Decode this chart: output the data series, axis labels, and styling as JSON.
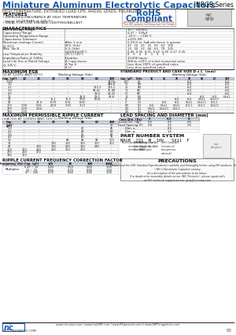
{
  "title": "Miniature Aluminum Electrolytic Capacitors",
  "series": "NRGB Series",
  "subtitle": "HIGH TEMPERATURE, EXTENDED LOAD LIFE, RADIAL LEADS, POLARIZED",
  "features_title": "FEATURES",
  "features": [
    "IMPROVED ENDURANCE AT HIGH TEMPERATURE\n  (up to 10,000HRS @ 105°C)",
    "IDEAL FOR LOW VOLTAGE LIGHTING/BALLAST"
  ],
  "rohs_line1": "RoHS",
  "rohs_line2": "Compliant",
  "rohs_sub": "includes all homogeneous materials",
  "rohs_sub2": "*See NIC website (niccomp.com) for Details",
  "char_title": "CHARACTERISTICS",
  "char_col0": [
    "Rated Voltage Range",
    "Capacitance Range",
    "Operating Temperature Range",
    "Capacitance Tolerance",
    "Maximum Leakage Current\n@ 20°C",
    "",
    "Max. Tan δ",
    "",
    "Low Temperature Stability\nImpedance Ratio @ 120Hz",
    "",
    "Load Life Test at Rated Voltage\n@ 105°C",
    "",
    ""
  ],
  "char_col1": [
    "",
    "",
    "",
    "",
    "After 2 min.",
    "W.V. (Vdc)",
    "S.V. (Vdc)",
    "@120Hz@20°C",
    "-25°C/+20°C",
    "Duration",
    "Δ Capacitance",
    "Δ Tan δ",
    "Δ LC"
  ],
  "char_col2": [
    "10 ~ 100VDC",
    "0.47 ~ 330μF",
    "-25°C ~ +105°C",
    "±20% (M)",
    "0.01CV or 3μA whichever is greater",
    "10   16   25   35   50   63   100",
    "13   20   32   44   63   79   125",
    "0.45  0.35  0.25  0.22  0.18  0.17  0.15",
    "8    6    4    4    3    3    3",
    "10,000 hours",
    "Within ±20% of initial measured value",
    "Less than 200% of specified value",
    "Less than specified value"
  ],
  "esr_title": "MAXIMUM ESR",
  "esr_sub": "(Ω AT 120Hz AND 20°C)",
  "esr_wv_label": "Working Voltage (Vdc)",
  "esr_headers": [
    "Cap. (μF)",
    "10",
    "16",
    "25",
    "35",
    "50",
    "63",
    "100"
  ],
  "esr_rows": [
    [
      "0.47",
      "-",
      "-",
      "-",
      "-",
      "-",
      "-",
      "1470s"
    ],
    [
      "1.0",
      "-",
      "-",
      "-",
      "-",
      "-",
      "-",
      "446.8"
    ],
    [
      "2.2",
      "-",
      "-",
      "-",
      "-",
      "-",
      "163.3",
      "115.1"
    ],
    [
      "3.3",
      "-",
      "-",
      "-",
      "-",
      "-",
      "90.41",
      "75.98"
    ],
    [
      "4.7",
      "-",
      "-",
      "-",
      "-",
      "-",
      "39.0",
      "26.25"
    ],
    [
      "10",
      "-",
      "-",
      "-",
      "-",
      "14.0",
      "29.2",
      "24.8"
    ],
    [
      "22",
      "-",
      "-",
      "15.1",
      "11.5",
      "9.50",
      "8.04",
      "-"
    ],
    [
      "47",
      "-",
      "12.4",
      "6.78",
      "6.31",
      "6.00",
      "-",
      "-"
    ],
    [
      "100",
      "7.48",
      "5.81",
      "4.59",
      "3.93",
      "3.13",
      "-",
      "-"
    ],
    [
      "220",
      "3.29",
      "2.64",
      "-",
      "-",
      "-",
      "-",
      "-"
    ],
    [
      "330",
      "2.26",
      "-",
      "-",
      "-",
      "-",
      "-",
      "-"
    ]
  ],
  "std_title": "STANDARD PRODUCT AND CASE SIZE D x L  (mm)",
  "std_wv_label": "Working Voltage (Vdc)",
  "std_headers": [
    "Cap. (μF)",
    "Code",
    "10",
    "16",
    "25",
    "35",
    "50",
    "63",
    "100"
  ],
  "std_rows": [
    [
      "0.47",
      "0.4",
      "-",
      "-",
      "-",
      "5x11",
      "-",
      "-",
      "5x11"
    ],
    [
      "1.0",
      "1R0",
      "-",
      "-",
      "-",
      "5x11",
      "-",
      "-",
      "5x11"
    ],
    [
      "2.2",
      "2R2",
      "-",
      "-",
      "-",
      "5x11",
      "-",
      "-",
      "5x11"
    ],
    [
      "3.3",
      "3R3",
      "-",
      "-",
      "-",
      "5x11",
      "-",
      "-",
      "5x11"
    ],
    [
      "4.7",
      "4R7",
      "-",
      "-",
      "-",
      "5x11",
      "-",
      "-",
      "5x11"
    ],
    [
      "10",
      "100",
      "-",
      "-",
      "-",
      "-",
      "5x11",
      "5x11",
      "6.3x11"
    ],
    [
      "22",
      "220",
      "-",
      "-",
      "5x11",
      "5x11",
      "6.3x11",
      "6.3x11.5",
      "-"
    ],
    [
      "47",
      "470",
      "-",
      "5x11",
      "5x11",
      "6.3x11",
      "6.3x11.5",
      "8x11.5",
      "-"
    ],
    [
      "100",
      "101",
      "5x11",
      "6.3x11",
      "6.3x11",
      "8x11.5",
      "8x11.5",
      "10x12.5",
      "-"
    ],
    [
      "220",
      "221",
      "6.3x11",
      "6.3x11.5",
      "8x11.5",
      "-",
      "-",
      "-",
      "-"
    ],
    [
      "330",
      "331",
      "8x11.5",
      "-",
      "-",
      "-",
      "-",
      "-",
      "-"
    ]
  ],
  "ripple_title": "MAXIMUM PERMISSIBLE RIPPLE CURRENT",
  "ripple_sub": "(mA rms AT 100KHz AND 105°C)",
  "ripple_wv_label": "Working Voltage (Vdc)",
  "ripple_headers": [
    "Cap.\n(μF)",
    "10",
    "16",
    "25",
    "35",
    "50",
    "63",
    "100"
  ],
  "ripple_rows": [
    [
      "0.47",
      "-",
      "-",
      "-",
      "-",
      "-",
      "-",
      "20"
    ],
    [
      "1.0",
      "-",
      "-",
      "-",
      "-",
      "20",
      "-",
      "45"
    ],
    [
      "2.2",
      "-",
      "-",
      "-",
      "-",
      "40",
      "-",
      "60"
    ],
    [
      "3.3",
      "-",
      "-",
      "-",
      "-",
      "50",
      "-",
      "60"
    ],
    [
      "4.7",
      "-",
      "-",
      "-",
      "-",
      "60",
      "-",
      "75"
    ],
    [
      "10",
      "-",
      "-",
      "-",
      "90",
      "90",
      "90",
      "100"
    ],
    [
      "22",
      "-",
      "-",
      "110",
      "150",
      "160",
      "160",
      "200"
    ],
    [
      "47",
      "-",
      "130",
      "130",
      "210",
      "190",
      "240",
      "-"
    ],
    [
      "100",
      "100",
      "210",
      "210",
      "300",
      "270",
      "-",
      "-"
    ],
    [
      "220",
      "210",
      "300",
      "-",
      "-",
      "-",
      "-",
      "-"
    ],
    [
      "330",
      "300",
      "-",
      "-",
      "-",
      "-",
      "-",
      "-"
    ]
  ],
  "lead_title": "LEAD SPACING AND DIAMETER (mm)",
  "lead_headers": [
    "Case Dia. (Dc)",
    "5",
    "6.3",
    "8"
  ],
  "lead_rows": [
    [
      "Lead Dia. (dp)",
      "0.5",
      "0.5",
      "0.6"
    ],
    [
      "Lead Spacing (F)",
      "2.0",
      "2.5",
      "3.5"
    ],
    [
      "Dim. a",
      "",
      "0.5",
      ""
    ],
    [
      "Dim. p",
      "",
      "1.5",
      ""
    ]
  ],
  "part_title": "PART NUMBER SYSTEM",
  "part_example": "NRGB  221  M  10V   5X11  F",
  "freq_title": "RIPPLE CURRENT FREQUENCY CORRECTION FACTOR",
  "freq_headers": [
    "Frequency (Hz)",
    "Cap. (μF)",
    "120",
    "1K",
    "10K",
    "100K"
  ],
  "freq_row0_label": "Multiplier",
  "freq_rows": [
    [
      "0.47 ~ 10",
      "0.44",
      "0.60",
      "0.80",
      "1.00"
    ],
    [
      "22 ~ 33",
      "0.55",
      "0.75",
      "0.90",
      "1.00"
    ],
    [
      "47 ~ 330",
      "0.70",
      "0.80",
      "0.95",
      "1.00"
    ]
  ],
  "precautions_title": "PRECAUTIONS",
  "precautions_text": "Please read the (NIC Standard Specifications) carefully and thoroughly before using NIC products. Refer to\n• NIC's Electrolytic Capacitor catalog\nfor a description of the precautions to be taken.\nIf in doubt or for assembly details on our (NIC Products) - please speak with\nan NIC technical support person: greg@niccomp.com",
  "footer_url": "www.niccomp.com | www.lowESR.com | www.RFpassives.com | www.SMTmagnetics.com",
  "bg_color": "#ffffff",
  "blue": "#1a5ca8",
  "red_rohs": "#cc2200",
  "table_hdr_bg": "#c8d4e8",
  "page_num": "83"
}
